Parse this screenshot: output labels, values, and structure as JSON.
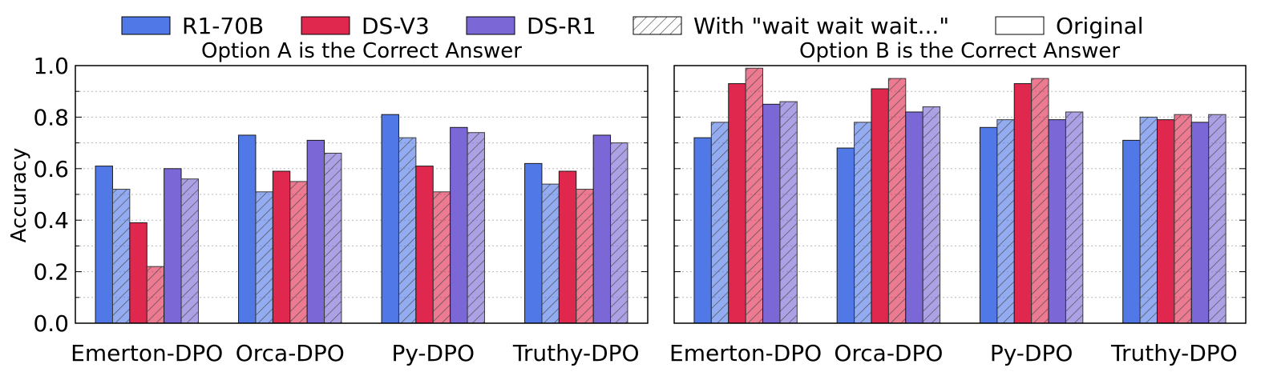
{
  "legend": {
    "items": [
      {
        "label": "R1-70B",
        "color": "#5078e6",
        "kind": "solid"
      },
      {
        "label": "DS-V3",
        "color": "#e0284e",
        "kind": "solid"
      },
      {
        "label": "DS-R1",
        "color": "#7b67d6",
        "kind": "solid"
      },
      {
        "label": "With \"wait wait wait...\"",
        "color": "#ffffff",
        "kind": "hatch"
      },
      {
        "label": "Original",
        "color": "#ffffff",
        "kind": "plain"
      }
    ]
  },
  "chart_data": [
    {
      "type": "bar",
      "title": "Option A is the Correct Answer",
      "ylabel": "Accuracy",
      "ylim": [
        0,
        1.0
      ],
      "yticks": [
        "0.0",
        "0.2",
        "0.4",
        "0.6",
        "0.8",
        "1.0"
      ],
      "categories": [
        "Emerton-DPO",
        "Orca-DPO",
        "Py-DPO",
        "Truthy-DPO"
      ],
      "series": [
        {
          "name": "R1-70B Original",
          "color": "#5078e6",
          "hatched": false,
          "values": [
            0.61,
            0.73,
            0.81,
            0.62
          ]
        },
        {
          "name": "R1-70B With \"wait wait wait...\"",
          "color": "#5078e6",
          "hatched": true,
          "values": [
            0.52,
            0.51,
            0.72,
            0.54
          ]
        },
        {
          "name": "DS-V3 Original",
          "color": "#e0284e",
          "hatched": false,
          "values": [
            0.39,
            0.59,
            0.61,
            0.59
          ]
        },
        {
          "name": "DS-V3 With \"wait wait wait...\"",
          "color": "#e0284e",
          "hatched": true,
          "values": [
            0.22,
            0.55,
            0.51,
            0.52
          ]
        },
        {
          "name": "DS-R1 Original",
          "color": "#7b67d6",
          "hatched": false,
          "values": [
            0.6,
            0.71,
            0.76,
            0.73
          ]
        },
        {
          "name": "DS-R1 With \"wait wait wait...\"",
          "color": "#7b67d6",
          "hatched": true,
          "values": [
            0.56,
            0.66,
            0.74,
            0.7
          ]
        }
      ]
    },
    {
      "type": "bar",
      "title": "Option B is the Correct Answer",
      "ylabel": "",
      "ylim": [
        0,
        1.0
      ],
      "yticks": [],
      "categories": [
        "Emerton-DPO",
        "Orca-DPO",
        "Py-DPO",
        "Truthy-DPO"
      ],
      "series": [
        {
          "name": "R1-70B Original",
          "color": "#5078e6",
          "hatched": false,
          "values": [
            0.72,
            0.68,
            0.76,
            0.71
          ]
        },
        {
          "name": "R1-70B With \"wait wait wait...\"",
          "color": "#5078e6",
          "hatched": true,
          "values": [
            0.78,
            0.78,
            0.79,
            0.8
          ]
        },
        {
          "name": "DS-V3 Original",
          "color": "#e0284e",
          "hatched": false,
          "values": [
            0.93,
            0.91,
            0.93,
            0.79
          ]
        },
        {
          "name": "DS-V3 With \"wait wait wait...\"",
          "color": "#e0284e",
          "hatched": true,
          "values": [
            0.99,
            0.95,
            0.95,
            0.81
          ]
        },
        {
          "name": "DS-R1 Original",
          "color": "#7b67d6",
          "hatched": false,
          "values": [
            0.85,
            0.82,
            0.79,
            0.78
          ]
        },
        {
          "name": "DS-R1 With \"wait wait wait...\"",
          "color": "#7b67d6",
          "hatched": true,
          "values": [
            0.86,
            0.84,
            0.82,
            0.81
          ]
        }
      ]
    }
  ]
}
